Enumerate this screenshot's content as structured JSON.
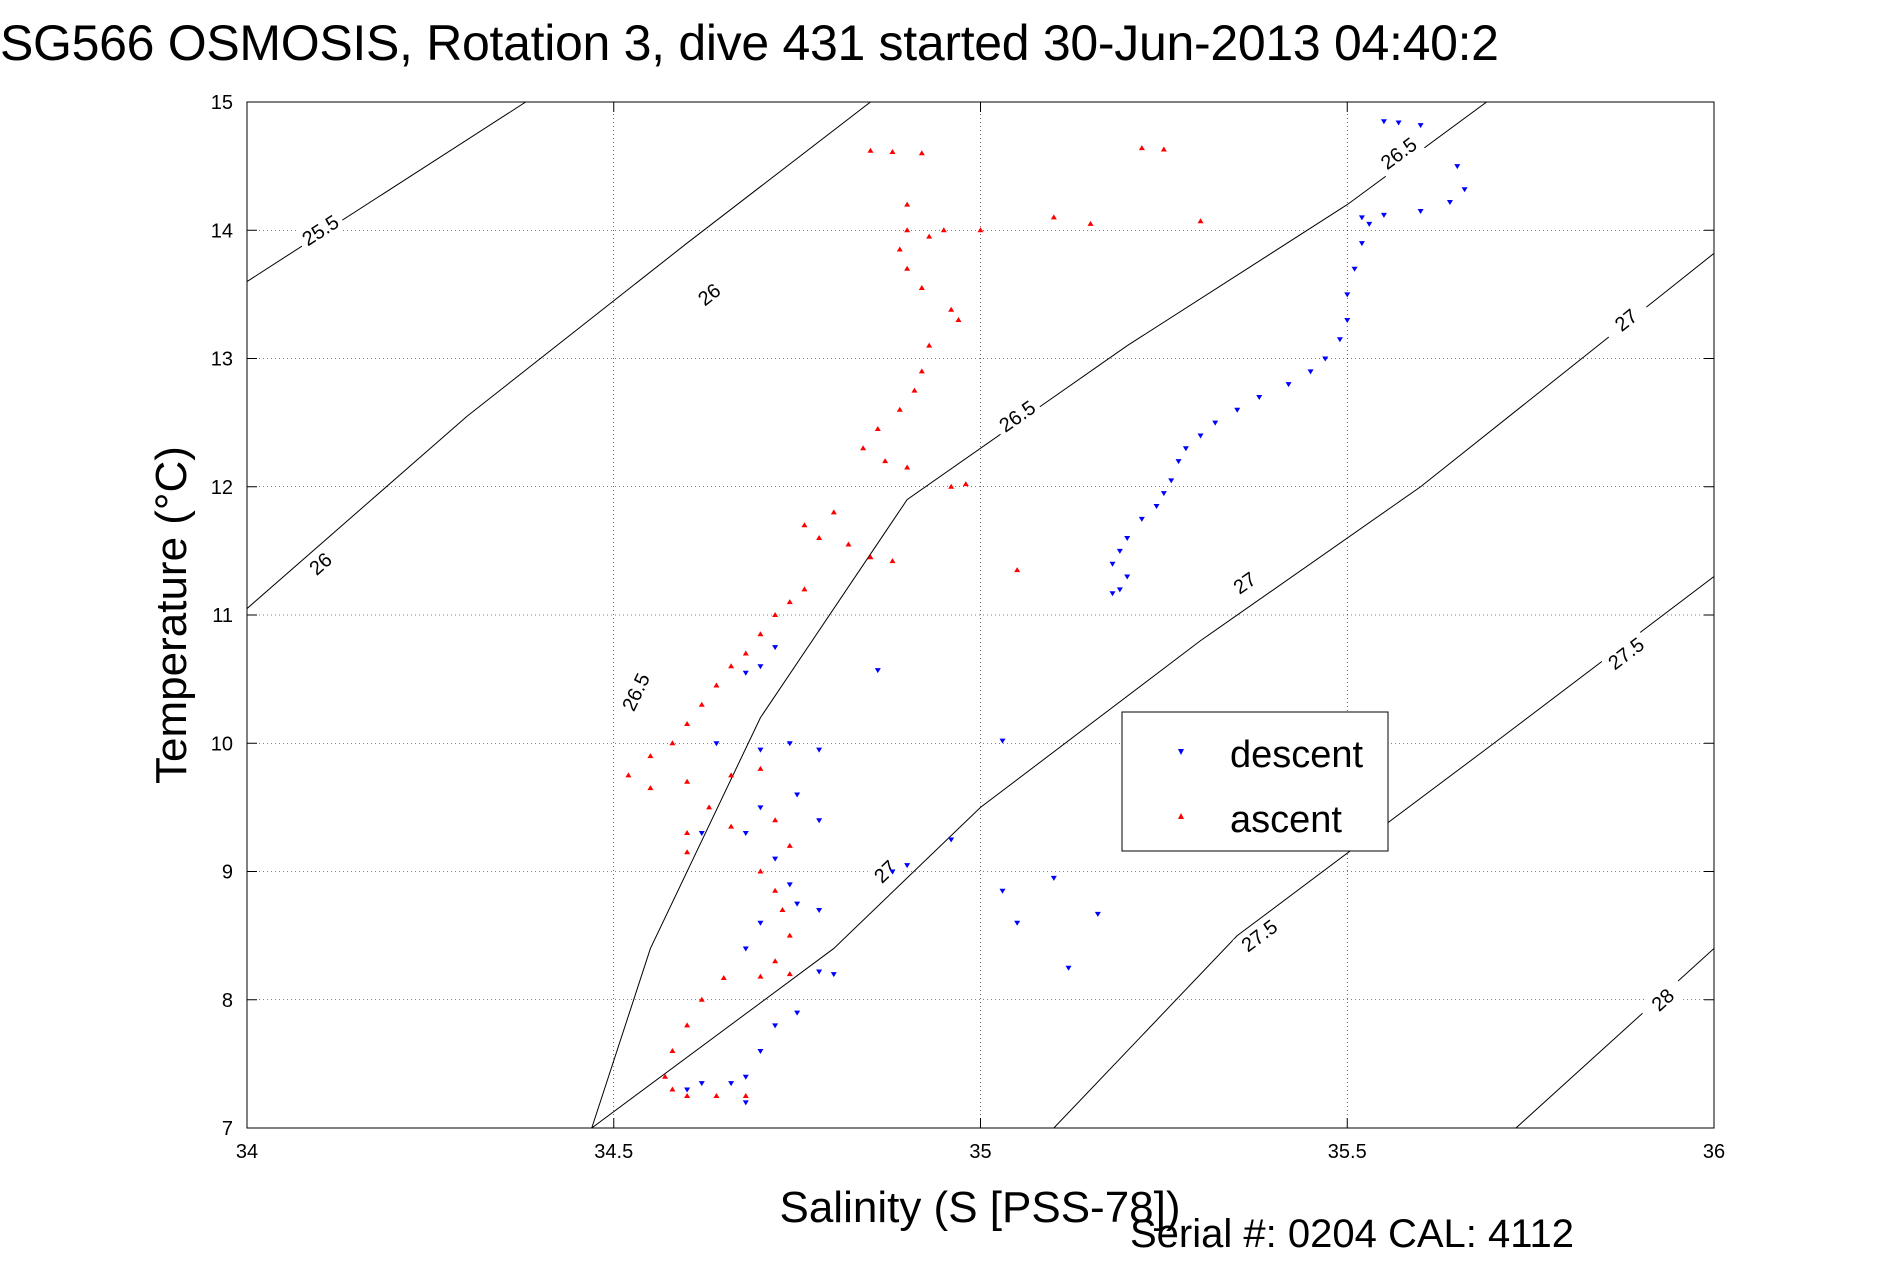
{
  "chart_data": {
    "type": "scatter",
    "title": "SG566 OSMOSIS, Rotation 3, dive 431 started 30-Jun-2013 04:40:2",
    "xlabel": "Salinity (S [PSS-78])",
    "ylabel": "Temperature (°C)",
    "xlim": [
      34,
      36
    ],
    "ylim": [
      7,
      15
    ],
    "xticks": [
      "34",
      "34.5",
      "35",
      "35.5",
      "36"
    ],
    "yticks": [
      "7",
      "8",
      "9",
      "10",
      "11",
      "12",
      "13",
      "14",
      "15"
    ],
    "grid": true,
    "legend": {
      "placement": "center-right",
      "entries": [
        "descent",
        "ascent"
      ]
    },
    "colors": {
      "descent": "#0000ff",
      "ascent": "#ff0000",
      "contour": "#000000"
    },
    "density_contours": [
      {
        "label": "25.5",
        "points": [
          [
            34.0,
            13.6
          ],
          [
            34.38,
            15.0
          ]
        ],
        "label_at": [
          34.1,
          14.0
        ]
      },
      {
        "label": "26",
        "points": [
          [
            34.0,
            11.05
          ],
          [
            34.3,
            12.55
          ],
          [
            34.6,
            13.9
          ],
          [
            34.85,
            15.0
          ]
        ],
        "label_at": [
          [
            34.1,
            11.4
          ],
          [
            34.63,
            13.5
          ]
        ]
      },
      {
        "label": "26.5",
        "points": [
          [
            34.47,
            7.0
          ],
          [
            34.55,
            8.4
          ],
          [
            34.7,
            10.2
          ],
          [
            34.9,
            11.9
          ],
          [
            35.2,
            13.1
          ],
          [
            35.5,
            14.2
          ],
          [
            35.69,
            15.0
          ]
        ],
        "label_at": [
          [
            34.53,
            10.4
          ],
          [
            35.05,
            12.55
          ],
          [
            35.57,
            14.6
          ]
        ]
      },
      {
        "label": "27",
        "points": [
          [
            34.47,
            7.0
          ],
          [
            34.8,
            8.4
          ],
          [
            35.0,
            9.5
          ],
          [
            35.3,
            10.8
          ],
          [
            35.6,
            12.0
          ],
          [
            36.0,
            13.82
          ]
        ],
        "label_at": [
          [
            34.87,
            9.0
          ],
          [
            35.36,
            11.25
          ],
          [
            35.88,
            13.3
          ]
        ]
      },
      {
        "label": "27.5",
        "points": [
          [
            35.1,
            7.0
          ],
          [
            35.35,
            8.5
          ],
          [
            35.7,
            10.0
          ],
          [
            36.0,
            11.3
          ]
        ],
        "label_at": [
          [
            35.38,
            8.5
          ],
          [
            35.88,
            10.7
          ]
        ]
      },
      {
        "label": "28",
        "points": [
          [
            35.73,
            7.0
          ],
          [
            36.0,
            8.4
          ]
        ],
        "label_at": [
          35.93,
          8.0
        ]
      }
    ],
    "series": [
      {
        "name": "descent",
        "marker": "triangle-down",
        "points": [
          [
            35.55,
            14.85
          ],
          [
            35.57,
            14.84
          ],
          [
            35.6,
            14.82
          ],
          [
            35.65,
            14.5
          ],
          [
            35.66,
            14.32
          ],
          [
            35.64,
            14.22
          ],
          [
            35.6,
            14.15
          ],
          [
            35.55,
            14.12
          ],
          [
            35.52,
            14.1
          ],
          [
            35.53,
            14.05
          ],
          [
            35.52,
            13.9
          ],
          [
            35.51,
            13.7
          ],
          [
            35.5,
            13.5
          ],
          [
            35.5,
            13.3
          ],
          [
            35.49,
            13.15
          ],
          [
            35.47,
            13.0
          ],
          [
            35.45,
            12.9
          ],
          [
            35.42,
            12.8
          ],
          [
            35.38,
            12.7
          ],
          [
            35.35,
            12.6
          ],
          [
            35.32,
            12.5
          ],
          [
            35.3,
            12.4
          ],
          [
            35.28,
            12.3
          ],
          [
            35.27,
            12.2
          ],
          [
            35.26,
            12.05
          ],
          [
            35.25,
            11.95
          ],
          [
            35.24,
            11.85
          ],
          [
            35.22,
            11.75
          ],
          [
            35.2,
            11.6
          ],
          [
            35.19,
            11.5
          ],
          [
            35.18,
            11.4
          ],
          [
            35.2,
            11.3
          ],
          [
            35.19,
            11.2
          ],
          [
            35.18,
            11.17
          ],
          [
            34.72,
            10.75
          ],
          [
            34.7,
            10.6
          ],
          [
            34.68,
            10.55
          ],
          [
            34.74,
            10.0
          ],
          [
            34.7,
            9.95
          ],
          [
            34.64,
            10.0
          ],
          [
            34.78,
            9.95
          ],
          [
            34.75,
            9.6
          ],
          [
            34.7,
            9.5
          ],
          [
            34.68,
            9.3
          ],
          [
            34.72,
            9.1
          ],
          [
            34.78,
            9.4
          ],
          [
            34.62,
            9.3
          ],
          [
            34.74,
            8.9
          ],
          [
            34.75,
            8.75
          ],
          [
            34.7,
            8.6
          ],
          [
            34.68,
            8.4
          ],
          [
            34.78,
            8.7
          ],
          [
            34.8,
            8.2
          ],
          [
            34.78,
            8.22
          ],
          [
            34.75,
            7.9
          ],
          [
            34.72,
            7.8
          ],
          [
            34.7,
            7.6
          ],
          [
            34.68,
            7.4
          ],
          [
            34.66,
            7.35
          ],
          [
            34.62,
            7.35
          ],
          [
            34.6,
            7.3
          ],
          [
            34.68,
            7.2
          ],
          [
            34.86,
            10.57
          ],
          [
            34.88,
            9.0
          ],
          [
            34.9,
            9.05
          ],
          [
            34.96,
            9.25
          ],
          [
            35.03,
            10.02
          ],
          [
            35.03,
            8.85
          ],
          [
            35.05,
            8.6
          ],
          [
            35.1,
            8.95
          ],
          [
            35.16,
            8.67
          ],
          [
            35.12,
            8.25
          ]
        ]
      },
      {
        "name": "ascent",
        "marker": "triangle-up",
        "points": [
          [
            34.85,
            14.62
          ],
          [
            34.88,
            14.61
          ],
          [
            35.22,
            14.64
          ],
          [
            35.25,
            14.63
          ],
          [
            34.92,
            14.6
          ],
          [
            34.9,
            14.2
          ],
          [
            34.9,
            14.0
          ],
          [
            34.93,
            13.95
          ],
          [
            34.95,
            14.0
          ],
          [
            35.0,
            14.0
          ],
          [
            35.1,
            14.1
          ],
          [
            35.15,
            14.05
          ],
          [
            34.89,
            13.85
          ],
          [
            34.9,
            13.7
          ],
          [
            34.92,
            13.55
          ],
          [
            34.96,
            13.38
          ],
          [
            34.97,
            13.3
          ],
          [
            34.93,
            13.1
          ],
          [
            34.92,
            12.9
          ],
          [
            34.91,
            12.75
          ],
          [
            34.89,
            12.6
          ],
          [
            34.86,
            12.45
          ],
          [
            34.84,
            12.3
          ],
          [
            34.87,
            12.2
          ],
          [
            34.9,
            12.15
          ],
          [
            34.96,
            12.0
          ],
          [
            34.8,
            11.8
          ],
          [
            34.76,
            11.7
          ],
          [
            34.78,
            11.6
          ],
          [
            34.82,
            11.55
          ],
          [
            34.85,
            11.45
          ],
          [
            34.88,
            11.42
          ],
          [
            34.76,
            11.2
          ],
          [
            34.74,
            11.1
          ],
          [
            34.72,
            11.0
          ],
          [
            34.7,
            10.85
          ],
          [
            34.68,
            10.7
          ],
          [
            34.66,
            10.6
          ],
          [
            34.64,
            10.45
          ],
          [
            34.62,
            10.3
          ],
          [
            34.6,
            10.15
          ],
          [
            34.58,
            10.0
          ],
          [
            34.55,
            9.9
          ],
          [
            34.52,
            9.75
          ],
          [
            34.55,
            9.65
          ],
          [
            34.6,
            9.7
          ],
          [
            34.66,
            9.75
          ],
          [
            34.7,
            9.8
          ],
          [
            34.63,
            9.5
          ],
          [
            34.6,
            9.3
          ],
          [
            34.6,
            9.15
          ],
          [
            34.66,
            9.35
          ],
          [
            34.72,
            9.4
          ],
          [
            34.74,
            9.2
          ],
          [
            34.7,
            9.0
          ],
          [
            34.72,
            8.85
          ],
          [
            34.73,
            8.7
          ],
          [
            34.74,
            8.5
          ],
          [
            34.72,
            8.3
          ],
          [
            34.74,
            8.2
          ],
          [
            34.7,
            8.18
          ],
          [
            34.65,
            8.17
          ],
          [
            34.62,
            8.0
          ],
          [
            34.6,
            7.8
          ],
          [
            34.58,
            7.6
          ],
          [
            34.57,
            7.4
          ],
          [
            34.58,
            7.3
          ],
          [
            34.6,
            7.25
          ],
          [
            34.64,
            7.25
          ],
          [
            34.68,
            7.25
          ],
          [
            35.05,
            11.35
          ],
          [
            34.98,
            12.02
          ],
          [
            35.3,
            14.07
          ]
        ]
      }
    ]
  },
  "footer": {
    "serial_text": "Serial #: 0204  CAL: 4112"
  }
}
